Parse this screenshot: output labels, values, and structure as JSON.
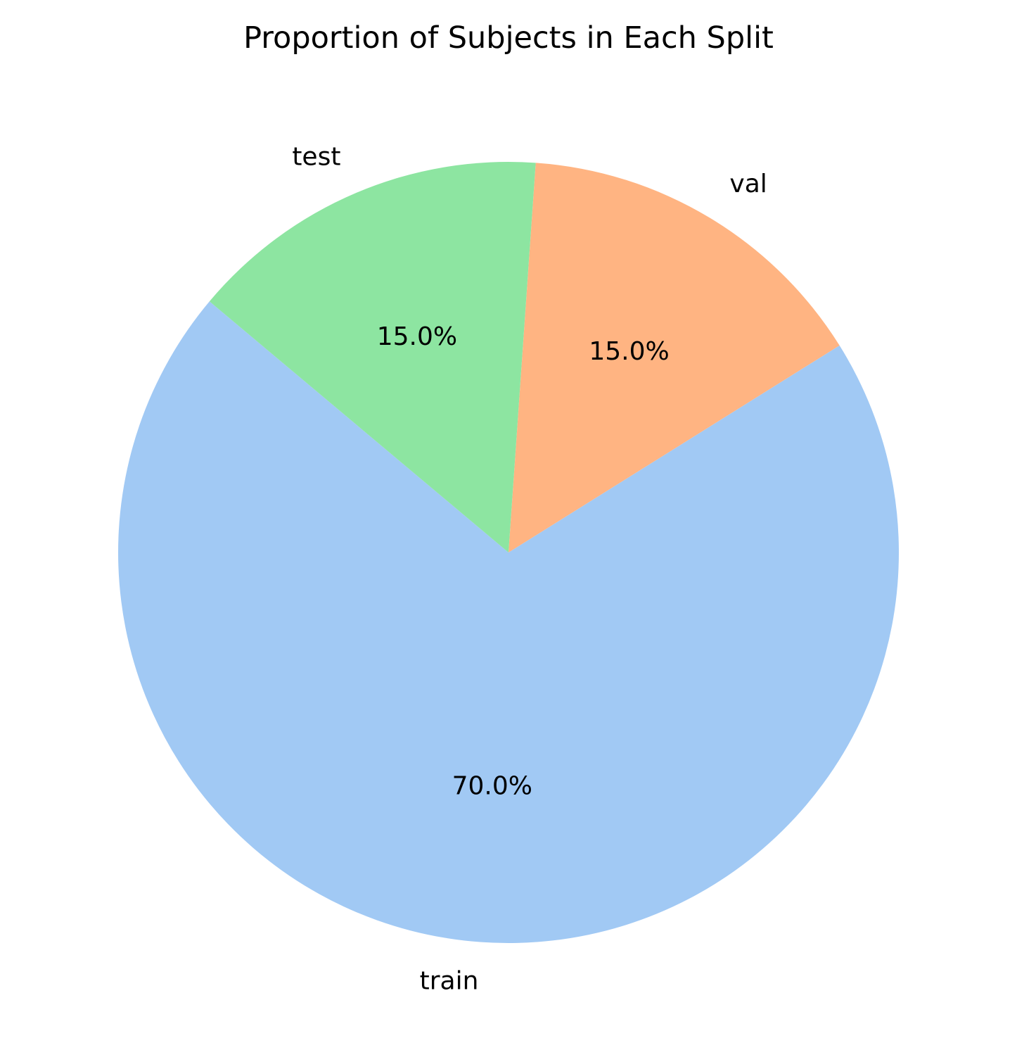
{
  "chart_data": {
    "type": "pie",
    "title": "Proportion of Subjects in Each Split",
    "categories": [
      "train",
      "val",
      "test"
    ],
    "values": [
      70.0,
      15.0,
      15.0
    ],
    "percent_labels": [
      "70.0%",
      "15.0%",
      "15.0%"
    ],
    "colors": [
      "#a1c9f4",
      "#ffb482",
      "#8de5a1"
    ],
    "start_angle_deg": 140,
    "direction": "counterclockwise",
    "legend": "none"
  }
}
